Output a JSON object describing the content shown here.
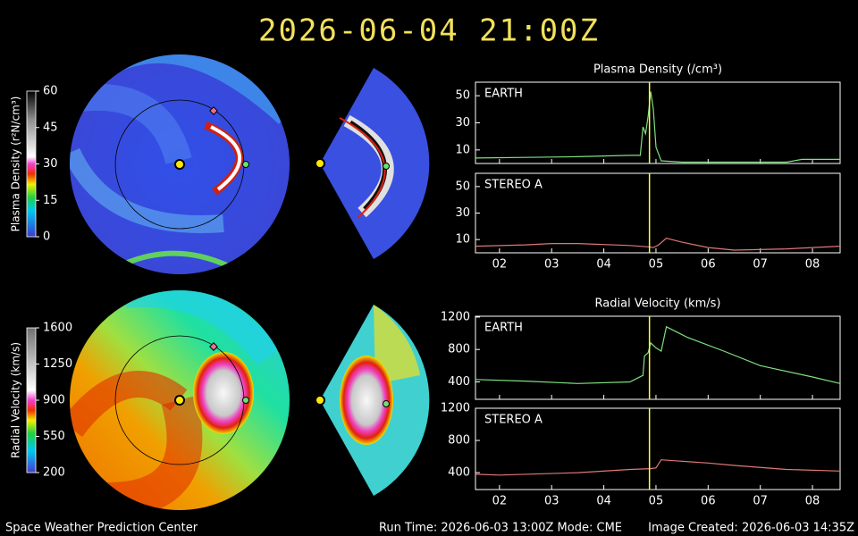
{
  "header": {
    "title": "2026-06-04 21:00Z"
  },
  "colorbars": [
    {
      "label": "Plasma Density (r²N/cm³)",
      "lim": [
        0,
        60
      ],
      "ticks": [
        0,
        15,
        30,
        45,
        60
      ]
    },
    {
      "label": "Radial Velocity (km/s)",
      "lim": [
        200,
        1600
      ],
      "ticks": [
        200,
        550,
        900,
        1250,
        1600
      ]
    }
  ],
  "chart_data": [
    {
      "type": "line",
      "title": "Plasma Density (/cm³)",
      "time_marker": 4.875,
      "x": [
        1.54,
        2.5,
        3.5,
        4.5,
        4.7,
        4.75,
        4.8,
        4.85,
        4.9,
        4.95,
        5.0,
        5.1,
        5.5,
        6.5,
        7.5,
        7.8,
        8.2,
        8.53
      ],
      "series": [
        {
          "name": "EARTH",
          "color": "#80e080",
          "values": [
            4,
            4.5,
            5,
            6,
            6,
            27,
            22,
            35,
            53,
            40,
            12,
            2,
            1,
            1,
            1,
            3,
            3,
            3
          ]
        }
      ],
      "xlim": [
        1.54,
        8.53
      ],
      "xticks": [
        2,
        3,
        4,
        5,
        6,
        7,
        8
      ],
      "ylim": [
        0,
        60
      ],
      "yticks": [
        10,
        30,
        50
      ]
    },
    {
      "type": "line",
      "time_marker": 4.875,
      "x": [
        1.54,
        2.5,
        3.0,
        3.5,
        4.5,
        4.85,
        4.95,
        5.05,
        5.2,
        5.5,
        6.0,
        6.5,
        7.5,
        8.53
      ],
      "series": [
        {
          "name": "STEREO A",
          "color": "#e07878",
          "values": [
            5,
            6,
            7,
            7,
            5.5,
            4.5,
            4,
            6,
            11,
            8,
            4,
            2,
            3,
            5
          ]
        }
      ],
      "xlim": [
        1.54,
        8.53
      ],
      "xticks": [
        {
          "value": 2,
          "label": "02"
        },
        {
          "value": 3,
          "label": "03"
        },
        {
          "value": 4,
          "label": "04"
        },
        {
          "value": 5,
          "label": "05"
        },
        {
          "value": 6,
          "label": "06"
        },
        {
          "value": 7,
          "label": "07"
        },
        {
          "value": 8,
          "label": "08"
        }
      ],
      "ylim": [
        0,
        60
      ],
      "yticks": [
        10,
        30,
        50
      ]
    },
    {
      "type": "line",
      "title": "Radial Velocity (km/s)",
      "time_marker": 4.875,
      "x": [
        1.54,
        2.5,
        3.5,
        4.5,
        4.75,
        4.78,
        4.85,
        4.9,
        5.0,
        5.1,
        5.2,
        5.6,
        6.3,
        7.0,
        8.0,
        8.53
      ],
      "series": [
        {
          "name": "EARTH",
          "color": "#80e080",
          "values": [
            430,
            410,
            380,
            400,
            480,
            720,
            760,
            880,
            820,
            780,
            1080,
            950,
            780,
            600,
            460,
            380
          ]
        }
      ],
      "xlim": [
        1.54,
        8.53
      ],
      "xticks": [
        2,
        3,
        4,
        5,
        6,
        7,
        8
      ],
      "ylim": [
        185,
        1210
      ],
      "yticks": [
        400,
        800,
        1200
      ]
    },
    {
      "type": "line",
      "time_marker": 4.875,
      "x": [
        1.54,
        2.0,
        3.5,
        4.5,
        4.9,
        5.0,
        5.1,
        6.0,
        6.5,
        7.5,
        8.53
      ],
      "series": [
        {
          "name": "STEREO A",
          "color": "#e07878",
          "values": [
            380,
            370,
            400,
            440,
            450,
            460,
            560,
            520,
            490,
            440,
            420
          ]
        }
      ],
      "xlim": [
        1.54,
        8.53
      ],
      "xticks": [
        {
          "value": 2,
          "label": "02"
        },
        {
          "value": 3,
          "label": "03"
        },
        {
          "value": 4,
          "label": "04"
        },
        {
          "value": 5,
          "label": "05"
        },
        {
          "value": 6,
          "label": "06"
        },
        {
          "value": 7,
          "label": "07"
        },
        {
          "value": 8,
          "label": "08"
        }
      ],
      "ylim": [
        190,
        1200
      ],
      "yticks": [
        400,
        800,
        1200
      ]
    }
  ],
  "footer": {
    "left": "Space Weather Prediction Center",
    "center": "Run Time: 2026-06-03 13:00Z  Mode: CME",
    "right": "Image Created: 2026-06-03 14:35Z"
  }
}
